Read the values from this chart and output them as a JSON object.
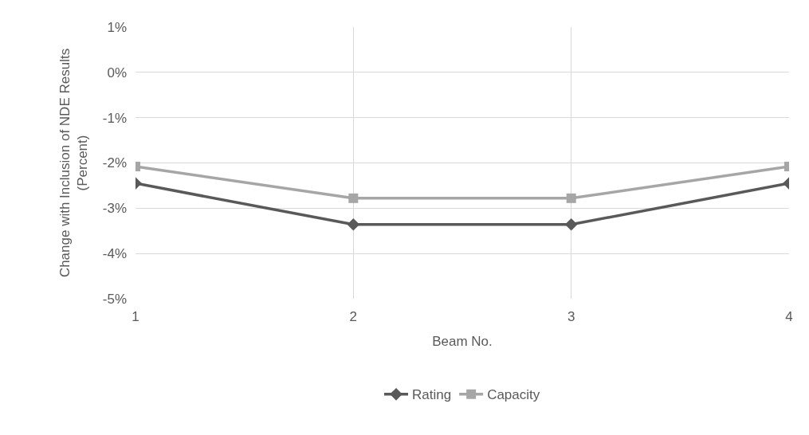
{
  "chart_data": {
    "type": "line",
    "xlabel": "Beam No.",
    "ylabel": "Change with Inclusion of NDE Results\n(Percent)",
    "x": [
      1,
      2,
      3,
      4
    ],
    "series": [
      {
        "name": "Rating",
        "color": "#595959",
        "marker": "diamond",
        "values": [
          -2.45,
          -3.36,
          -3.36,
          -2.45
        ]
      },
      {
        "name": "Capacity",
        "color": "#a6a6a6",
        "marker": "square",
        "values": [
          -2.08,
          -2.78,
          -2.78,
          -2.08
        ]
      }
    ],
    "xlim": [
      1,
      4
    ],
    "xticks": [
      1,
      2,
      3,
      4
    ],
    "ylim": [
      -5,
      1
    ],
    "yticks": [
      {
        "value": 1,
        "label": "1%"
      },
      {
        "value": 0,
        "label": "0%"
      },
      {
        "value": -1,
        "label": "-1%"
      },
      {
        "value": -2,
        "label": "-2%"
      },
      {
        "value": -3,
        "label": "-3%"
      },
      {
        "value": -4,
        "label": "-4%"
      },
      {
        "value": -5,
        "label": "-5%"
      }
    ],
    "grid": true,
    "legend": "bottom",
    "line_style": "solid"
  }
}
